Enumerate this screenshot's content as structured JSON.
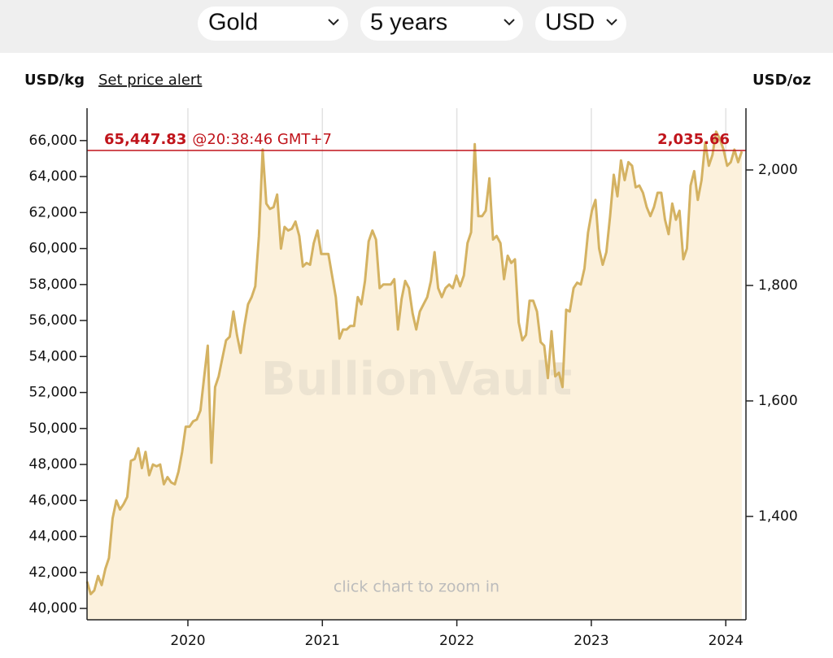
{
  "controls": {
    "metal": "Gold",
    "period": "5 years",
    "currency": "USD"
  },
  "chart_data": {
    "type": "line",
    "y_label": "USD/kg",
    "y2_label": "USD/oz",
    "alert_link": "Set price alert",
    "watermark": "BullionVault",
    "hint": "click chart to zoom in",
    "current": {
      "value": 65447.83,
      "label": "65,447.83",
      "time": "@20:38:46 GMT+7",
      "y2_value": 2035.66,
      "y2_label": "2,035.66"
    },
    "color": "#d4b262",
    "fill": "#fcf1dc",
    "current_color": "#c0141b",
    "grid": true,
    "xlim": [
      2019.25,
      2024.15
    ],
    "xticks": [
      2020,
      2021,
      2022,
      2023,
      2024
    ],
    "ylim": [
      39370,
      67800
    ],
    "yticks": [
      {
        "value": 40000,
        "label": "40,000"
      },
      {
        "value": 42000,
        "label": "42,000"
      },
      {
        "value": 44000,
        "label": "44,000"
      },
      {
        "value": 46000,
        "label": "46,000"
      },
      {
        "value": 48000,
        "label": "48,000"
      },
      {
        "value": 50000,
        "label": "50,000"
      },
      {
        "value": 52000,
        "label": "52,000"
      },
      {
        "value": 54000,
        "label": "54,000"
      },
      {
        "value": 56000,
        "label": "56,000"
      },
      {
        "value": 58000,
        "label": "58,000"
      },
      {
        "value": 60000,
        "label": "60,000"
      },
      {
        "value": 62000,
        "label": "62,000"
      },
      {
        "value": 64000,
        "label": "64,000"
      },
      {
        "value": 66000,
        "label": "66,000"
      }
    ],
    "y2lim": [
      1221,
      2107
    ],
    "y2ticks": [
      {
        "value": 1400,
        "label": "1,400"
      },
      {
        "value": 1600,
        "label": "1,600"
      },
      {
        "value": 1800,
        "label": "1,800"
      },
      {
        "value": 2000,
        "label": "2,000"
      }
    ],
    "x": [
      2019.25,
      2019.277,
      2019.304,
      2019.332,
      2019.359,
      2019.386,
      2019.413,
      2019.44,
      2019.468,
      2019.495,
      2019.522,
      2019.549,
      2019.576,
      2019.604,
      2019.631,
      2019.658,
      2019.685,
      2019.712,
      2019.74,
      2019.767,
      2019.794,
      2019.821,
      2019.848,
      2019.876,
      2019.903,
      2019.93,
      2019.957,
      2019.984,
      2020.012,
      2020.039,
      2020.066,
      2020.093,
      2020.12,
      2020.148,
      2020.175,
      2020.202,
      2020.229,
      2020.256,
      2020.284,
      2020.311,
      2020.338,
      2020.365,
      2020.392,
      2020.42,
      2020.447,
      2020.474,
      2020.501,
      2020.528,
      2020.556,
      2020.583,
      2020.61,
      2020.637,
      2020.664,
      2020.692,
      2020.719,
      2020.746,
      2020.773,
      2020.8,
      2020.828,
      2020.855,
      2020.882,
      2020.909,
      2020.936,
      2020.964,
      2020.991,
      2021.018,
      2021.045,
      2021.072,
      2021.1,
      2021.127,
      2021.154,
      2021.181,
      2021.208,
      2021.236,
      2021.263,
      2021.29,
      2021.317,
      2021.344,
      2021.372,
      2021.399,
      2021.426,
      2021.453,
      2021.48,
      2021.508,
      2021.535,
      2021.562,
      2021.589,
      2021.616,
      2021.644,
      2021.671,
      2021.698,
      2021.725,
      2021.752,
      2021.78,
      2021.807,
      2021.834,
      2021.861,
      2021.888,
      2021.916,
      2021.943,
      2021.97,
      2021.997,
      2022.024,
      2022.052,
      2022.079,
      2022.106,
      2022.133,
      2022.16,
      2022.188,
      2022.215,
      2022.242,
      2022.269,
      2022.296,
      2022.324,
      2022.351,
      2022.378,
      2022.405,
      2022.432,
      2022.46,
      2022.487,
      2022.514,
      2022.541,
      2022.568,
      2022.596,
      2022.623,
      2022.65,
      2022.677,
      2022.704,
      2022.732,
      2022.759,
      2022.786,
      2022.813,
      2022.84,
      2022.868,
      2022.895,
      2022.922,
      2022.949,
      2022.976,
      2023.004,
      2023.031,
      2023.058,
      2023.085,
      2023.112,
      2023.14,
      2023.167,
      2023.194,
      2023.221,
      2023.248,
      2023.276,
      2023.303,
      2023.33,
      2023.357,
      2023.384,
      2023.412,
      2023.439,
      2023.466,
      2023.493,
      2023.52,
      2023.548,
      2023.575,
      2023.602,
      2023.629,
      2023.656,
      2023.684,
      2023.711,
      2023.738,
      2023.765,
      2023.792,
      2023.82,
      2023.847,
      2023.874,
      2023.901,
      2023.928,
      2023.956,
      2023.983,
      2024.01,
      2024.037,
      2024.064,
      2024.092,
      2024.119
    ],
    "values": [
      41500,
      40800,
      41000,
      41800,
      41300,
      42200,
      42800,
      45000,
      46000,
      45500,
      45800,
      46200,
      48200,
      48300,
      48900,
      47800,
      48700,
      47400,
      48000,
      47900,
      48000,
      46900,
      47300,
      47000,
      46900,
      47600,
      48700,
      50100,
      50100,
      50400,
      50500,
      51000,
      52800,
      54600,
      48100,
      52300,
      52900,
      53900,
      54900,
      55100,
      56500,
      55200,
      54200,
      55700,
      56900,
      57300,
      57900,
      60700,
      65500,
      62500,
      62200,
      62300,
      63000,
      60000,
      61200,
      61000,
      61100,
      61500,
      60700,
      59000,
      59200,
      59100,
      60300,
      61000,
      59700,
      59700,
      59700,
      58500,
      57300,
      55000,
      55500,
      55500,
      55700,
      55700,
      57300,
      56900,
      58200,
      60400,
      61000,
      60500,
      57800,
      58000,
      58000,
      58000,
      58300,
      55500,
      57200,
      58200,
      57800,
      56400,
      55500,
      56500,
      56900,
      57300,
      58200,
      59800,
      57800,
      57300,
      57800,
      58000,
      57800,
      58500,
      57900,
      58500,
      60300,
      60900,
      65800,
      61800,
      61800,
      62100,
      63900,
      60500,
      60700,
      60300,
      58300,
      59600,
      59200,
      59400,
      55900,
      54900,
      55200,
      57100,
      57100,
      56500,
      54800,
      54600,
      52800,
      55400,
      52900,
      53100,
      52300,
      56600,
      56500,
      57800,
      58100,
      58000,
      58900,
      60900,
      62100,
      62700,
      60000,
      59100,
      59800,
      61800,
      64100,
      62900,
      64900,
      63800,
      64800,
      64600,
      63400,
      63500,
      63100,
      62300,
      61800,
      62300,
      63100,
      63100,
      61600,
      60800,
      62500,
      61600,
      62100,
      59400,
      60000,
      63500,
      64300,
      62700,
      63800,
      65900,
      64600,
      65200,
      66500,
      66100,
      65500,
      64600,
      64800,
      65500,
      64800,
      65400
    ]
  }
}
